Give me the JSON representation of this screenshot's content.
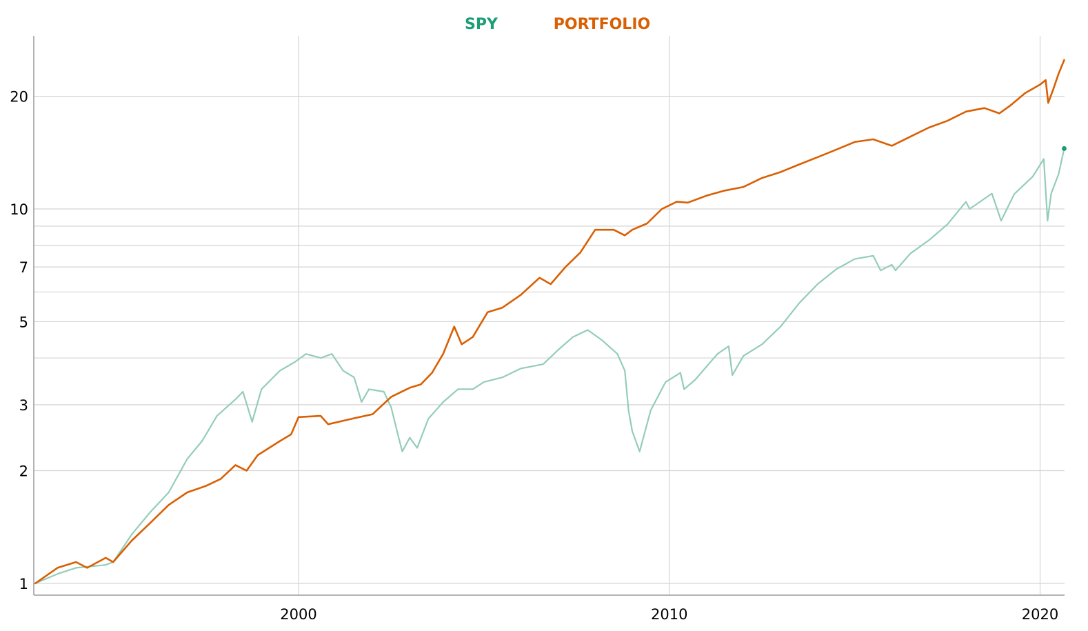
{
  "chart_data": {
    "type": "line",
    "title": "",
    "xlabel": "",
    "ylabel": "",
    "y_scale": "log",
    "x_range": [
      1992.86,
      2020.66
    ],
    "y_range": [
      0.93,
      29
    ],
    "grid": true,
    "legend_position": "top-center",
    "y_ticks": [
      {
        "value": 1,
        "label": "1"
      },
      {
        "value": 2,
        "label": "2"
      },
      {
        "value": 3,
        "label": "3"
      },
      {
        "value": 5,
        "label": "5"
      },
      {
        "value": 7,
        "label": "7"
      },
      {
        "value": 10,
        "label": "10"
      },
      {
        "value": 20,
        "label": "20"
      }
    ],
    "y_minor_gridlines": [
      0.9,
      4,
      6,
      8,
      9
    ],
    "x_ticks": [
      {
        "value": 2000,
        "label": "2000"
      },
      {
        "value": 2010,
        "label": "2010"
      },
      {
        "value": 2020,
        "label": "2020"
      }
    ],
    "series": [
      {
        "name": "SPY",
        "color": "#1b9e77",
        "line_color": "#93cdb8",
        "end_marker": true,
        "points": [
          [
            1992.9,
            1.0
          ],
          [
            1993.5,
            1.06
          ],
          [
            1994.0,
            1.1
          ],
          [
            1994.8,
            1.12
          ],
          [
            1995.0,
            1.14
          ],
          [
            1995.5,
            1.35
          ],
          [
            1996.0,
            1.55
          ],
          [
            1996.5,
            1.75
          ],
          [
            1997.0,
            2.15
          ],
          [
            1997.4,
            2.4
          ],
          [
            1997.8,
            2.8
          ],
          [
            1998.3,
            3.1
          ],
          [
            1998.5,
            3.25
          ],
          [
            1998.75,
            2.7
          ],
          [
            1999.0,
            3.3
          ],
          [
            1999.5,
            3.7
          ],
          [
            1999.9,
            3.9
          ],
          [
            2000.2,
            4.1
          ],
          [
            2000.6,
            4.0
          ],
          [
            2000.9,
            4.1
          ],
          [
            2001.2,
            3.7
          ],
          [
            2001.5,
            3.55
          ],
          [
            2001.7,
            3.05
          ],
          [
            2001.9,
            3.3
          ],
          [
            2002.3,
            3.25
          ],
          [
            2002.5,
            2.95
          ],
          [
            2002.7,
            2.45
          ],
          [
            2002.8,
            2.25
          ],
          [
            2003.0,
            2.45
          ],
          [
            2003.2,
            2.3
          ],
          [
            2003.5,
            2.75
          ],
          [
            2003.9,
            3.05
          ],
          [
            2004.3,
            3.3
          ],
          [
            2004.7,
            3.3
          ],
          [
            2005.0,
            3.45
          ],
          [
            2005.5,
            3.55
          ],
          [
            2006.0,
            3.75
          ],
          [
            2006.6,
            3.85
          ],
          [
            2007.0,
            4.2
          ],
          [
            2007.4,
            4.55
          ],
          [
            2007.8,
            4.75
          ],
          [
            2008.2,
            4.45
          ],
          [
            2008.6,
            4.1
          ],
          [
            2008.8,
            3.7
          ],
          [
            2008.9,
            2.9
          ],
          [
            2009.0,
            2.55
          ],
          [
            2009.2,
            2.25
          ],
          [
            2009.5,
            2.9
          ],
          [
            2009.9,
            3.45
          ],
          [
            2010.3,
            3.65
          ],
          [
            2010.4,
            3.3
          ],
          [
            2010.7,
            3.5
          ],
          [
            2011.3,
            4.1
          ],
          [
            2011.6,
            4.3
          ],
          [
            2011.7,
            3.6
          ],
          [
            2012.0,
            4.05
          ],
          [
            2012.5,
            4.35
          ],
          [
            2013.0,
            4.85
          ],
          [
            2013.5,
            5.6
          ],
          [
            2014.0,
            6.3
          ],
          [
            2014.5,
            6.9
          ],
          [
            2015.0,
            7.35
          ],
          [
            2015.5,
            7.5
          ],
          [
            2015.7,
            6.85
          ],
          [
            2016.0,
            7.1
          ],
          [
            2016.1,
            6.85
          ],
          [
            2016.5,
            7.6
          ],
          [
            2017.0,
            8.25
          ],
          [
            2017.5,
            9.1
          ],
          [
            2018.0,
            10.45
          ],
          [
            2018.1,
            10.0
          ],
          [
            2018.7,
            11.0
          ],
          [
            2018.95,
            9.3
          ],
          [
            2019.3,
            10.95
          ],
          [
            2019.8,
            12.2
          ],
          [
            2020.1,
            13.6
          ],
          [
            2020.2,
            9.3
          ],
          [
            2020.3,
            11.0
          ],
          [
            2020.5,
            12.4
          ],
          [
            2020.65,
            14.5
          ]
        ]
      },
      {
        "name": "PORTFOLIO",
        "color": "#d95f02",
        "line_color": "#d95f02",
        "end_marker": false,
        "points": [
          [
            1992.9,
            1.0
          ],
          [
            1993.5,
            1.1
          ],
          [
            1994.0,
            1.14
          ],
          [
            1994.3,
            1.1
          ],
          [
            1994.8,
            1.17
          ],
          [
            1995.0,
            1.14
          ],
          [
            1995.5,
            1.3
          ],
          [
            1996.0,
            1.45
          ],
          [
            1996.5,
            1.62
          ],
          [
            1997.0,
            1.75
          ],
          [
            1997.5,
            1.82
          ],
          [
            1997.9,
            1.9
          ],
          [
            1998.3,
            2.07
          ],
          [
            1998.6,
            2.0
          ],
          [
            1998.9,
            2.2
          ],
          [
            1999.5,
            2.4
          ],
          [
            1999.8,
            2.5
          ],
          [
            2000.0,
            2.78
          ],
          [
            2000.6,
            2.8
          ],
          [
            2000.8,
            2.66
          ],
          [
            2001.5,
            2.76
          ],
          [
            2002.0,
            2.83
          ],
          [
            2002.5,
            3.15
          ],
          [
            2003.0,
            3.33
          ],
          [
            2003.3,
            3.4
          ],
          [
            2003.6,
            3.65
          ],
          [
            2003.9,
            4.1
          ],
          [
            2004.2,
            4.85
          ],
          [
            2004.4,
            4.35
          ],
          [
            2004.7,
            4.55
          ],
          [
            2005.1,
            5.3
          ],
          [
            2005.5,
            5.45
          ],
          [
            2006.0,
            5.9
          ],
          [
            2006.5,
            6.55
          ],
          [
            2006.8,
            6.3
          ],
          [
            2007.2,
            7.0
          ],
          [
            2007.6,
            7.65
          ],
          [
            2008.0,
            8.8
          ],
          [
            2008.5,
            8.8
          ],
          [
            2008.8,
            8.5
          ],
          [
            2009.0,
            8.8
          ],
          [
            2009.4,
            9.15
          ],
          [
            2009.8,
            10.0
          ],
          [
            2010.2,
            10.45
          ],
          [
            2010.5,
            10.4
          ],
          [
            2011.0,
            10.85
          ],
          [
            2011.5,
            11.2
          ],
          [
            2012.0,
            11.45
          ],
          [
            2012.5,
            12.1
          ],
          [
            2013.0,
            12.55
          ],
          [
            2013.5,
            13.15
          ],
          [
            2014.0,
            13.75
          ],
          [
            2014.5,
            14.4
          ],
          [
            2015.0,
            15.1
          ],
          [
            2015.5,
            15.35
          ],
          [
            2016.0,
            14.75
          ],
          [
            2016.5,
            15.6
          ],
          [
            2017.0,
            16.5
          ],
          [
            2017.5,
            17.2
          ],
          [
            2018.0,
            18.2
          ],
          [
            2018.5,
            18.6
          ],
          [
            2018.9,
            18.0
          ],
          [
            2019.2,
            18.9
          ],
          [
            2019.6,
            20.4
          ],
          [
            2020.0,
            21.5
          ],
          [
            2020.15,
            22.1
          ],
          [
            2020.22,
            19.2
          ],
          [
            2020.35,
            20.8
          ],
          [
            2020.5,
            23.0
          ],
          [
            2020.65,
            25.0
          ]
        ]
      }
    ]
  }
}
